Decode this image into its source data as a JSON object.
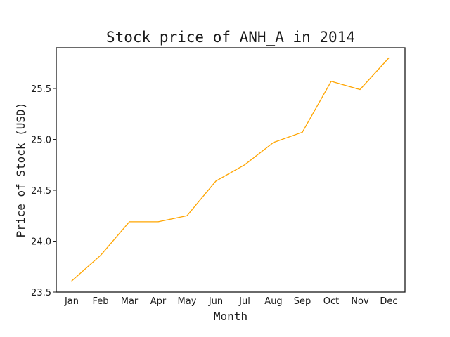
{
  "chart_data": {
    "type": "line",
    "title": "Stock price of ANH_A in 2014",
    "xlabel": "Month",
    "ylabel": "Price of Stock (USD)",
    "categories": [
      "Jan",
      "Feb",
      "Mar",
      "Apr",
      "May",
      "Jun",
      "Jul",
      "Aug",
      "Sep",
      "Oct",
      "Nov",
      "Dec"
    ],
    "series": [
      {
        "values": [
          23.61,
          23.86,
          24.19,
          24.19,
          24.25,
          24.59,
          24.75,
          24.97,
          25.07,
          25.57,
          25.49,
          25.8
        ],
        "color": "#ffa500"
      }
    ],
    "ylim": [
      23.5,
      25.9
    ],
    "yticks": [
      "23.5",
      "24.0",
      "24.5",
      "25.0",
      "25.5"
    ],
    "grid": false,
    "legend": "none"
  }
}
